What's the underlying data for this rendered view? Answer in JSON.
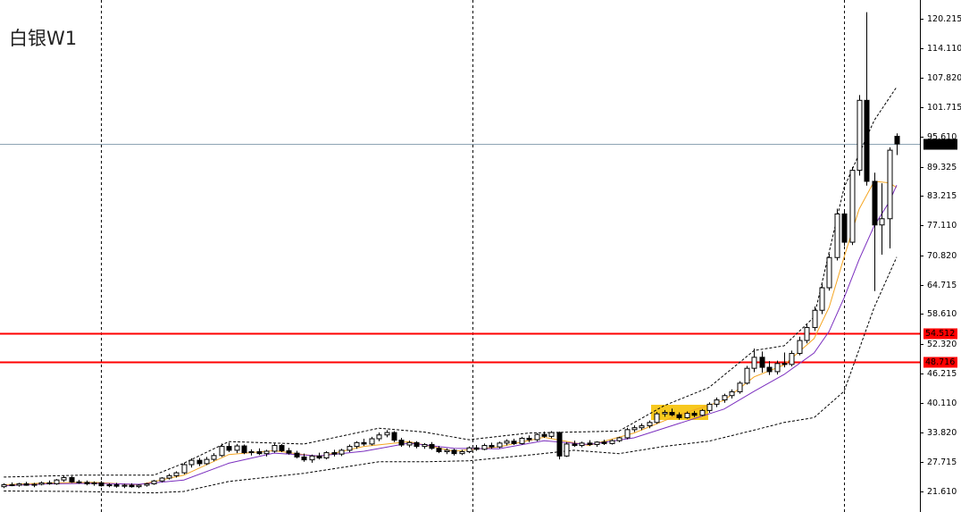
{
  "chart_data": {
    "type": "candlestick",
    "title": "白银W1",
    "xlim": [
      -0.5,
      122.1
    ],
    "ylim": [
      17.32,
      124.13
    ],
    "yticks": [
      120.215,
      {
        "value": 114.11,
        "label": "114.110"
      },
      {
        "value": 107.82,
        "label": "107.820"
      },
      101.715,
      {
        "value": 95.61,
        "label": "95.610"
      },
      89.325,
      83.215,
      {
        "value": 77.11,
        "label": "77.110"
      },
      {
        "value": 70.82,
        "label": "70.820"
      },
      64.715,
      {
        "value": 58.61,
        "label": "58.610"
      },
      {
        "value": 52.32,
        "label": "52.320"
      },
      46.215,
      {
        "value": 40.11,
        "label": "40.110"
      },
      {
        "value": 33.82,
        "label": "33.820"
      },
      27.715,
      {
        "value": 21.61,
        "label": "21.610"
      }
    ],
    "current_price": 94.075,
    "current_price_color": "#8ea4b4",
    "levels": [
      54.512,
      48.716
    ],
    "level_color": "#ff0000",
    "up_color": "#ffffff",
    "down_color": "#000000",
    "ohlc": [
      [
        22.6,
        23.3,
        22.3,
        23.0
      ],
      [
        23.0,
        23.5,
        22.7,
        22.9
      ],
      [
        22.9,
        23.4,
        22.6,
        23.2
      ],
      [
        23.2,
        23.6,
        22.8,
        22.9
      ],
      [
        22.9,
        23.4,
        22.5,
        23.1
      ],
      [
        23.1,
        23.7,
        22.9,
        23.4
      ],
      [
        23.4,
        23.9,
        23.0,
        23.2
      ],
      [
        23.2,
        24.2,
        23.0,
        24.0
      ],
      [
        24.0,
        24.9,
        23.6,
        24.5
      ],
      [
        24.5,
        24.8,
        23.4,
        23.6
      ],
      [
        23.6,
        24.0,
        23.2,
        23.5
      ],
      [
        23.5,
        23.9,
        22.9,
        23.2
      ],
      [
        23.2,
        23.7,
        22.8,
        23.4
      ],
      [
        23.4,
        23.8,
        22.6,
        22.8
      ],
      [
        22.8,
        23.3,
        22.5,
        23.0
      ],
      [
        23.0,
        23.4,
        22.4,
        22.7
      ],
      [
        22.7,
        23.2,
        22.3,
        22.9
      ],
      [
        22.9,
        23.3,
        22.4,
        22.6
      ],
      [
        22.6,
        23.1,
        22.3,
        22.9
      ],
      [
        22.9,
        23.4,
        22.6,
        23.2
      ],
      [
        23.2,
        24.0,
        23.0,
        23.8
      ],
      [
        23.8,
        24.6,
        23.5,
        24.4
      ],
      [
        24.4,
        25.3,
        24.1,
        24.9
      ],
      [
        24.9,
        25.8,
        24.5,
        25.5
      ],
      [
        25.5,
        27.6,
        25.2,
        27.2
      ],
      [
        27.2,
        28.5,
        26.6,
        28.1
      ],
      [
        28.1,
        28.6,
        26.9,
        27.4
      ],
      [
        27.4,
        28.8,
        27.1,
        28.3
      ],
      [
        28.3,
        29.6,
        27.9,
        29.1
      ],
      [
        29.1,
        31.6,
        28.8,
        31.0
      ],
      [
        31.0,
        31.8,
        29.8,
        30.2
      ],
      [
        30.2,
        31.5,
        29.6,
        31.1
      ],
      [
        31.1,
        31.4,
        29.4,
        29.7
      ],
      [
        29.7,
        30.4,
        29.1,
        29.9
      ],
      [
        29.9,
        30.6,
        29.2,
        29.5
      ],
      [
        29.5,
        30.3,
        28.9,
        30.0
      ],
      [
        30.0,
        31.6,
        29.7,
        31.2
      ],
      [
        31.2,
        31.5,
        29.8,
        30.1
      ],
      [
        30.1,
        30.7,
        29.3,
        29.6
      ],
      [
        29.6,
        30.1,
        28.5,
        28.8
      ],
      [
        28.8,
        29.5,
        27.8,
        28.2
      ],
      [
        28.2,
        29.3,
        27.6,
        29.0
      ],
      [
        29.0,
        29.7,
        28.3,
        28.6
      ],
      [
        28.6,
        30.0,
        28.3,
        29.7
      ],
      [
        29.7,
        30.3,
        28.9,
        29.4
      ],
      [
        29.4,
        30.5,
        29.0,
        30.2
      ],
      [
        30.2,
        31.4,
        29.8,
        31.0
      ],
      [
        31.0,
        32.1,
        30.5,
        31.8
      ],
      [
        31.8,
        32.6,
        31.1,
        31.5
      ],
      [
        31.5,
        33.0,
        31.2,
        32.6
      ],
      [
        32.6,
        33.9,
        32.1,
        33.4
      ],
      [
        33.4,
        34.4,
        32.9,
        33.9
      ],
      [
        33.9,
        34.2,
        31.9,
        32.3
      ],
      [
        32.3,
        32.8,
        30.9,
        31.3
      ],
      [
        31.3,
        32.2,
        30.8,
        31.8
      ],
      [
        31.8,
        32.1,
        30.6,
        31.0
      ],
      [
        31.0,
        31.7,
        30.5,
        31.4
      ],
      [
        31.4,
        31.9,
        30.3,
        30.6
      ],
      [
        30.6,
        31.1,
        29.6,
        29.9
      ],
      [
        29.9,
        30.6,
        29.4,
        30.2
      ],
      [
        30.2,
        30.5,
        29.1,
        29.5
      ],
      [
        29.5,
        30.3,
        29.2,
        29.9
      ],
      [
        29.9,
        31.0,
        29.6,
        30.7
      ],
      [
        30.7,
        31.3,
        30.1,
        30.4
      ],
      [
        30.4,
        31.6,
        30.2,
        31.2
      ],
      [
        31.2,
        31.8,
        30.5,
        30.9
      ],
      [
        30.9,
        32.0,
        30.6,
        31.7
      ],
      [
        31.7,
        32.5,
        31.2,
        32.1
      ],
      [
        32.1,
        32.6,
        31.3,
        31.6
      ],
      [
        31.6,
        33.0,
        31.4,
        32.7
      ],
      [
        32.7,
        33.3,
        31.9,
        32.4
      ],
      [
        32.4,
        33.8,
        32.1,
        33.5
      ],
      [
        33.5,
        34.1,
        32.8,
        33.1
      ],
      [
        33.1,
        34.2,
        32.7,
        33.9
      ],
      [
        33.9,
        34.1,
        28.3,
        29.0
      ],
      [
        29.0,
        31.9,
        28.8,
        31.5
      ],
      [
        31.5,
        32.2,
        30.9,
        31.2
      ],
      [
        31.2,
        32.0,
        30.8,
        31.7
      ],
      [
        31.7,
        32.3,
        31.1,
        31.4
      ],
      [
        31.4,
        32.1,
        30.9,
        31.9
      ],
      [
        31.9,
        32.4,
        31.3,
        31.6
      ],
      [
        31.6,
        32.5,
        31.4,
        32.2
      ],
      [
        32.2,
        33.0,
        31.9,
        32.8
      ],
      [
        32.8,
        34.9,
        32.5,
        34.5
      ],
      [
        34.5,
        35.4,
        34.0,
        34.9
      ],
      [
        34.9,
        35.8,
        34.4,
        35.3
      ],
      [
        35.3,
        36.4,
        34.8,
        36.0
      ],
      [
        36.0,
        38.2,
        35.7,
        37.8
      ],
      [
        37.8,
        38.6,
        37.2,
        38.1
      ],
      [
        38.1,
        38.9,
        37.3,
        37.6
      ],
      [
        37.6,
        38.1,
        36.6,
        37.0
      ],
      [
        37.0,
        38.3,
        36.8,
        37.9
      ],
      [
        37.9,
        38.4,
        37.1,
        37.5
      ],
      [
        37.5,
        38.8,
        37.3,
        38.5
      ],
      [
        38.5,
        40.2,
        38.0,
        39.8
      ],
      [
        39.8,
        41.2,
        39.2,
        40.7
      ],
      [
        40.7,
        42.0,
        40.1,
        41.6
      ],
      [
        41.6,
        42.9,
        41.0,
        42.4
      ],
      [
        42.4,
        44.6,
        42.0,
        44.2
      ],
      [
        44.2,
        47.8,
        43.9,
        47.3
      ],
      [
        47.3,
        51.4,
        46.5,
        49.6
      ],
      [
        49.6,
        50.8,
        46.4,
        47.5
      ],
      [
        47.5,
        48.8,
        45.9,
        46.6
      ],
      [
        46.6,
        48.9,
        46.0,
        48.3
      ],
      [
        48.3,
        50.6,
        47.5,
        48.1
      ],
      [
        48.1,
        51.0,
        47.7,
        50.4
      ],
      [
        50.4,
        53.9,
        50.0,
        53.1
      ],
      [
        53.1,
        56.4,
        52.5,
        55.8
      ],
      [
        55.8,
        60.2,
        55.1,
        59.4
      ],
      [
        59.4,
        64.9,
        58.6,
        64.1
      ],
      [
        64.1,
        71.2,
        63.5,
        70.4
      ],
      [
        70.4,
        80.6,
        69.8,
        79.5
      ],
      [
        79.5,
        80.2,
        72.8,
        73.6
      ],
      [
        73.6,
        89.3,
        73.0,
        88.6
      ],
      [
        88.6,
        104.3,
        87.5,
        103.2
      ],
      [
        103.2,
        121.6,
        85.4,
        86.3
      ],
      [
        86.3,
        88.1,
        63.4,
        77.2
      ],
      [
        77.2,
        85.9,
        71.0,
        78.5
      ],
      [
        78.5,
        93.4,
        72.3,
        92.8
      ],
      [
        95.7,
        96.3,
        91.8,
        94.1
      ]
    ],
    "lines": [
      {
        "color": "#f5a623",
        "dashed": false,
        "x": [
          0,
          6,
          12,
          18,
          24,
          30,
          36,
          42,
          48,
          54,
          60,
          66,
          72,
          78,
          84,
          90,
          96,
          100,
          104,
          108,
          110,
          112,
          114,
          116,
          118,
          119
        ],
        "values": [
          23.0,
          23.4,
          23.5,
          23.0,
          25.0,
          29.3,
          30.1,
          28.9,
          31.0,
          32.0,
          30.0,
          30.9,
          32.9,
          31.2,
          33.8,
          37.6,
          40.6,
          45.5,
          48.0,
          53.5,
          60.0,
          70.5,
          80.5,
          86.3,
          86.0,
          85.0
        ]
      },
      {
        "color": "#7b2fbf",
        "dashed": false,
        "x": [
          0,
          6,
          12,
          18,
          24,
          30,
          36,
          42,
          48,
          54,
          60,
          66,
          72,
          78,
          84,
          90,
          96,
          100,
          104,
          108,
          110,
          112,
          114,
          116,
          118,
          119
        ],
        "values": [
          22.8,
          23.2,
          23.3,
          23.1,
          24.0,
          27.5,
          29.6,
          29.0,
          30.0,
          31.7,
          30.6,
          30.5,
          32.2,
          31.4,
          32.8,
          35.8,
          38.8,
          42.5,
          46.0,
          50.5,
          55.0,
          62.0,
          70.0,
          77.0,
          82.0,
          85.5
        ]
      },
      {
        "color": "#000000",
        "dashed": true,
        "x": [
          0,
          10,
          20,
          24,
          30,
          40,
          50,
          56,
          62,
          70,
          76,
          82,
          88,
          94,
          100,
          104,
          108,
          112,
          116,
          119
        ],
        "values": [
          24.6,
          25.0,
          25.0,
          27.5,
          32.0,
          31.5,
          34.8,
          34.0,
          32.4,
          33.8,
          34.0,
          34.2,
          39.5,
          43.3,
          51.0,
          52.0,
          58.0,
          85.0,
          99.0,
          106.0
        ]
      },
      {
        "color": "#000000",
        "dashed": true,
        "x": [
          0,
          10,
          20,
          24,
          30,
          40,
          50,
          56,
          62,
          70,
          76,
          82,
          88,
          94,
          100,
          104,
          108,
          112,
          116,
          119
        ],
        "values": [
          21.7,
          21.6,
          21.3,
          21.6,
          23.7,
          25.4,
          27.8,
          27.8,
          28.0,
          29.2,
          30.2,
          29.5,
          31.0,
          32.1,
          34.4,
          36.0,
          37.0,
          42.5,
          60.0,
          70.5
        ]
      }
    ]
  }
}
